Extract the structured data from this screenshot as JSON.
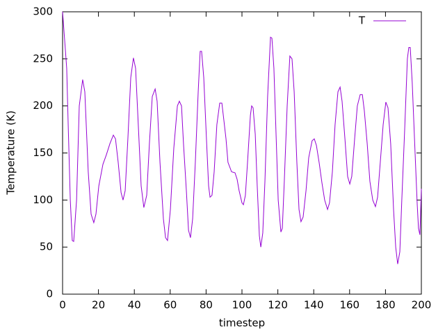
{
  "chart_data": {
    "type": "line",
    "xlabel": "timestep",
    "ylabel": "Temperature (K)",
    "x": [
      0,
      2.3,
      3.2,
      4.3,
      5.4,
      6.2,
      7.8,
      9.3,
      11.2,
      12.4,
      14.3,
      15.9,
      17.4,
      18.6,
      20.2,
      22.5,
      24.4,
      26.4,
      28.3,
      29.5,
      31,
      32.6,
      33.7,
      34.9,
      36.4,
      38,
      39.5,
      40.7,
      42.2,
      43.8,
      45.3,
      46.9,
      48.4,
      50,
      51.6,
      52.7,
      54.3,
      56.2,
      57.4,
      58.5,
      60.1,
      62,
      64,
      65.1,
      66.3,
      67.4,
      69,
      70.2,
      71.3,
      72.5,
      74,
      75.6,
      76.7,
      77.5,
      78.7,
      80.2,
      81.4,
      82.2,
      83.3,
      84.5,
      86,
      87.6,
      88.8,
      89.9,
      91.1,
      92.2,
      94.2,
      96.1,
      97.3,
      98.4,
      100,
      100.8,
      101.9,
      103.1,
      104.7,
      105.4,
      106.2,
      107.4,
      108.5,
      109.7,
      110.5,
      111.6,
      112.8,
      114.3,
      115.9,
      116.7,
      117.8,
      119,
      120.2,
      121.7,
      122.5,
      123.6,
      125.2,
      126.7,
      127.9,
      129.1,
      130.6,
      131.8,
      132.9,
      134.1,
      135.7,
      137.2,
      139.1,
      140.3,
      141.5,
      143,
      144.6,
      146.1,
      147.7,
      148.8,
      150.4,
      151.9,
      153.5,
      154.7,
      155.8,
      157.4,
      158.9,
      160.1,
      161.2,
      162.8,
      164.3,
      165.9,
      167.1,
      168.2,
      169.8,
      171.3,
      172.9,
      174.4,
      175.6,
      177.1,
      178.7,
      180.2,
      181.4,
      182.9,
      184.5,
      185.7,
      186.8,
      188,
      189.1,
      190.7,
      192.2,
      193,
      193.8,
      194.9,
      196.5,
      197.7,
      198.4,
      199.2,
      200
    ],
    "series": [
      {
        "name": "T",
        "color": "#9400d3",
        "values": [
          300,
          240,
          175,
          100,
          57,
          56,
          100,
          200,
          228,
          215,
          130,
          85,
          76,
          85,
          115,
          138,
          148,
          160,
          169,
          165,
          140,
          108,
          100,
          110,
          165,
          230,
          251,
          240,
          180,
          115,
          92,
          105,
          160,
          210,
          218,
          205,
          140,
          80,
          60,
          57,
          90,
          155,
          200,
          205,
          200,
          160,
          110,
          68,
          60,
          80,
          140,
          215,
          258,
          258,
          230,
          165,
          115,
          103,
          105,
          130,
          180,
          203,
          203,
          185,
          165,
          140,
          130,
          129,
          122,
          110,
          97,
          95,
          105,
          140,
          190,
          200,
          198,
          170,
          115,
          62,
          50,
          65,
          120,
          210,
          273,
          272,
          240,
          170,
          100,
          66,
          70,
          120,
          200,
          253,
          250,
          215,
          140,
          90,
          77,
          82,
          110,
          145,
          163,
          165,
          158,
          140,
          118,
          100,
          90,
          97,
          130,
          180,
          215,
          220,
          205,
          165,
          125,
          117,
          125,
          165,
          200,
          212,
          212,
          195,
          160,
          120,
          100,
          93,
          103,
          140,
          180,
          204,
          198,
          160,
          90,
          50,
          32,
          45,
          100,
          175,
          250,
          262,
          262,
          225,
          150,
          95,
          70,
          63,
          112
        ]
      }
    ],
    "xlim": [
      0,
      200
    ],
    "xticks": [
      0,
      20,
      40,
      60,
      80,
      100,
      120,
      140,
      160,
      180,
      200
    ],
    "ylim": [
      0,
      300
    ],
    "yticks": [
      0,
      50,
      100,
      150,
      200,
      250,
      300
    ],
    "grid": false,
    "legend": "top-right"
  }
}
